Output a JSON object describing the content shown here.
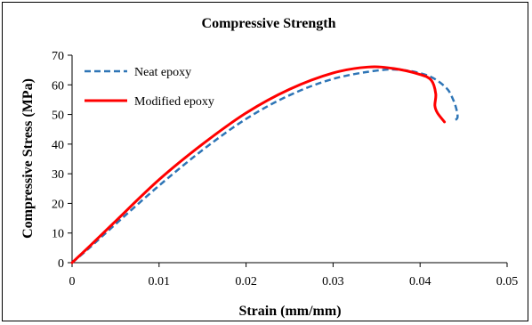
{
  "chart_data": {
    "type": "line",
    "title": "Compressive Strength",
    "xlabel": "Strain (mm/mm)",
    "ylabel": "Compressive Stress (MPa)",
    "xlim": [
      0,
      0.05
    ],
    "ylim": [
      0,
      70
    ],
    "x_ticks": [
      "0",
      "0.01",
      "0.02",
      "0.03",
      "0.04",
      "0.05"
    ],
    "y_ticks": [
      "0",
      "10",
      "20",
      "30",
      "40",
      "50",
      "60",
      "70"
    ],
    "grid": false,
    "legend_position": "top-left",
    "series": [
      {
        "name": "Neat epoxy",
        "color": "#2E75B6",
        "style": "dashed",
        "points": [
          [
            0,
            0
          ],
          [
            0.002,
            5
          ],
          [
            0.005,
            13
          ],
          [
            0.01,
            26
          ],
          [
            0.015,
            38
          ],
          [
            0.02,
            48.5
          ],
          [
            0.025,
            56.5
          ],
          [
            0.03,
            62
          ],
          [
            0.035,
            64.8
          ],
          [
            0.038,
            65
          ],
          [
            0.041,
            63
          ],
          [
            0.043,
            59
          ],
          [
            0.0438,
            55
          ],
          [
            0.0442,
            51.5
          ],
          [
            0.0443,
            49
          ],
          [
            0.044,
            48
          ]
        ]
      },
      {
        "name": "Modified epoxy",
        "color": "#FF0000",
        "style": "solid",
        "points": [
          [
            0,
            0
          ],
          [
            0.002,
            5.5
          ],
          [
            0.005,
            14
          ],
          [
            0.01,
            28
          ],
          [
            0.015,
            40
          ],
          [
            0.02,
            50.5
          ],
          [
            0.025,
            58.5
          ],
          [
            0.03,
            64
          ],
          [
            0.034,
            66
          ],
          [
            0.037,
            65.5
          ],
          [
            0.04,
            63.5
          ],
          [
            0.0413,
            61.5
          ],
          [
            0.0418,
            57
          ],
          [
            0.0417,
            53
          ],
          [
            0.042,
            50.5
          ],
          [
            0.0428,
            47.5
          ]
        ]
      }
    ]
  }
}
